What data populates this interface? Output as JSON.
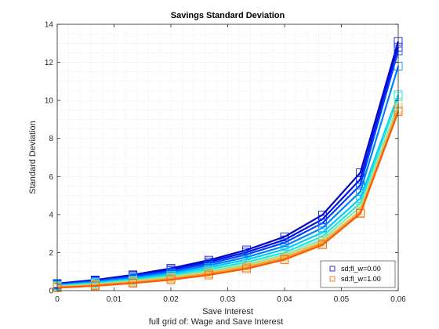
{
  "chart_data": {
    "type": "line",
    "title": "Savings Standard Deviation",
    "xlabel": "Save Interest",
    "xlabel2": "full grid of: Wage and Save Interest",
    "ylabel": "Standard Deviation",
    "xlim": [
      0,
      0.06
    ],
    "ylim": [
      0,
      14
    ],
    "xticks": [
      0,
      0.01,
      0.02,
      0.03,
      0.04,
      0.05,
      0.06
    ],
    "xtick_labels": [
      "0",
      "0.01",
      "0.02",
      "0.03",
      "0.04",
      "0.05",
      "0.06"
    ],
    "yticks": [
      0,
      2,
      4,
      6,
      8,
      10,
      12,
      14
    ],
    "ytick_labels": [
      "0",
      "2",
      "4",
      "6",
      "8",
      "10",
      "12",
      "14"
    ],
    "grid": "dotted",
    "legend_position": "bottom-right",
    "x": [
      0,
      0.00667,
      0.01333,
      0.02,
      0.02667,
      0.03333,
      0.04,
      0.04667,
      0.05333,
      0.06
    ],
    "series": [
      {
        "name": "sd;fl_w=0.00",
        "color": "#0000cc",
        "marker": "square",
        "in_legend": true,
        "values": [
          0.37,
          0.56,
          0.83,
          1.17,
          1.6,
          2.14,
          2.83,
          3.98,
          6.2,
          13.1
        ]
      },
      {
        "color": "#0010e0",
        "marker": "square",
        "in_legend": false,
        "values": [
          0.35,
          0.53,
          0.79,
          1.1,
          1.51,
          2.02,
          2.67,
          3.75,
          5.85,
          12.8
        ]
      },
      {
        "color": "#0040ff",
        "marker": "square",
        "in_legend": false,
        "values": [
          0.33,
          0.5,
          0.74,
          1.04,
          1.42,
          1.9,
          2.52,
          3.55,
          5.55,
          12.6
        ]
      },
      {
        "color": "#0080ff",
        "marker": "square",
        "in_legend": false,
        "values": [
          0.3,
          0.46,
          0.68,
          0.96,
          1.32,
          1.76,
          2.34,
          3.3,
          5.2,
          11.8
        ]
      },
      {
        "color": "#00c8ff",
        "marker": "square",
        "in_legend": false,
        "values": [
          0.27,
          0.42,
          0.62,
          0.88,
          1.22,
          1.63,
          2.17,
          3.05,
          4.85,
          10.3
        ]
      },
      {
        "color": "#20e6e0",
        "marker": "square",
        "in_legend": false,
        "values": [
          0.24,
          0.38,
          0.56,
          0.8,
          1.12,
          1.5,
          2.0,
          2.85,
          4.6,
          10.2
        ]
      },
      {
        "color": "#90e8a0",
        "marker": "square",
        "in_legend": false,
        "values": [
          0.21,
          0.34,
          0.51,
          0.73,
          1.03,
          1.39,
          1.88,
          2.7,
          4.4,
          9.8
        ]
      },
      {
        "color": "#e8c060",
        "marker": "square",
        "in_legend": false,
        "values": [
          0.19,
          0.31,
          0.47,
          0.67,
          0.95,
          1.3,
          1.78,
          2.58,
          4.2,
          9.6
        ]
      },
      {
        "color": "#f0a030",
        "marker": "square",
        "in_legend": false,
        "values": [
          0.17,
          0.28,
          0.43,
          0.62,
          0.88,
          1.22,
          1.7,
          2.48,
          4.1,
          9.5
        ]
      },
      {
        "name": "sd;fl_w=1.00",
        "color": "#ff5a00",
        "marker": "square",
        "in_legend": true,
        "values": [
          0.15,
          0.25,
          0.39,
          0.57,
          0.82,
          1.15,
          1.63,
          2.4,
          4.05,
          9.4
        ]
      }
    ]
  }
}
